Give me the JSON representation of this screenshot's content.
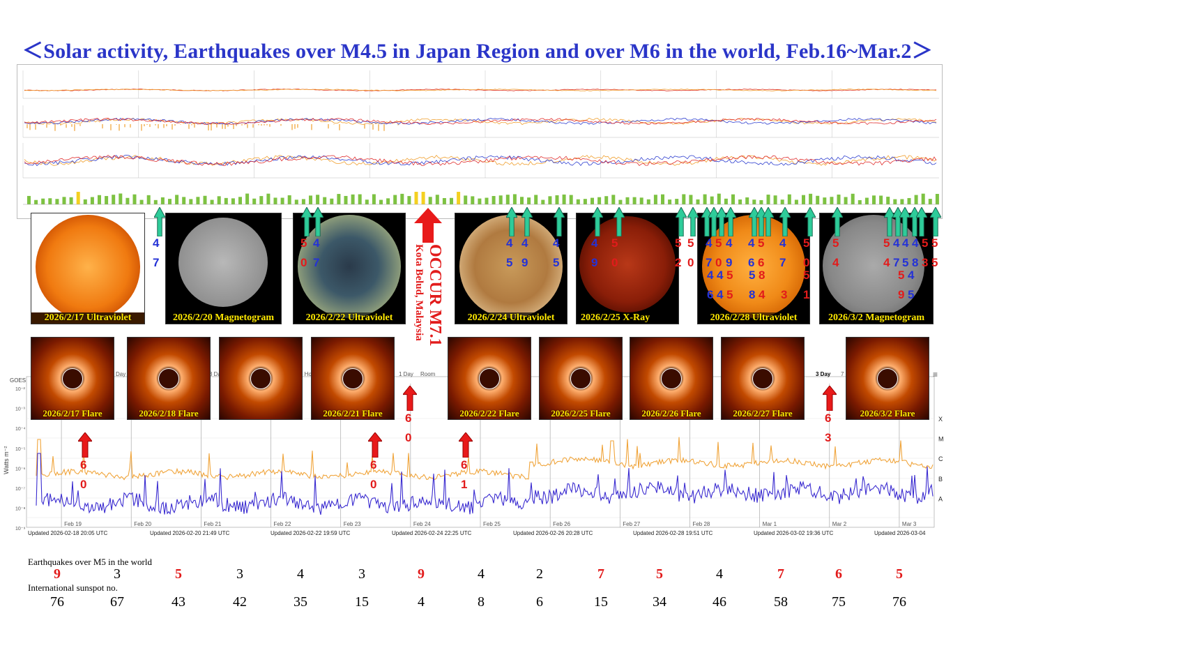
{
  "title": "＜Solar activity, Earthquakes over M4.5 in Japan Region and over M6 in the world, Feb.16~Mar.2＞",
  "colors": {
    "title": "#2a35c8",
    "blue_digit": "#2432d6",
    "red_digit": "#e21b1b",
    "xray_long": "#f0a43a",
    "xray_short": "#3a2bd0",
    "caption": "#ffe900"
  },
  "solar_images": [
    {
      "caption": "2026/2/17 Ultraviolet",
      "kind": "uv_orange"
    },
    {
      "caption": "2026/2/20 Magnetogram",
      "kind": "magnetogram"
    },
    {
      "caption": "2026/2/22 Ultraviolet",
      "kind": "uv_blue"
    },
    {
      "caption": "2026/2/24 Ultraviolet",
      "kind": "uv_tan"
    },
    {
      "caption": "2026/2/25 X-Ray",
      "kind": "xray_red"
    },
    {
      "caption": "2026/2/28 Ultraviolet",
      "kind": "uv_orange"
    },
    {
      "caption": "2026/3/2 Magnetogram",
      "kind": "magnetogram"
    }
  ],
  "flare_images": [
    {
      "caption": "2026/2/17 Flare"
    },
    {
      "caption": "2026/2/18 Flare"
    },
    {
      "caption": ""
    },
    {
      "caption": "2026/2/21 Flare"
    },
    {
      "caption": "2026/2/22 Flare"
    },
    {
      "caption": "2026/2/25 Flare"
    },
    {
      "caption": "2026/2/26 Flare"
    },
    {
      "caption": "2026/2/27 Flare"
    },
    {
      "caption": "2026/3/2 Flare"
    }
  ],
  "japan_quake_labels": [
    {
      "top": "4",
      "bottom": "7"
    },
    {
      "top": "5",
      "bottom": "0"
    },
    {
      "top": "4",
      "bottom": "7"
    },
    {
      "top": "4",
      "bottom": "5"
    },
    {
      "top": "4",
      "bottom": "9"
    },
    {
      "top": "4",
      "bottom": "5"
    },
    {
      "top": "4",
      "bottom": "9"
    },
    {
      "top": "5",
      "bottom": "0"
    },
    {
      "top": "5",
      "bottom": "2"
    },
    {
      "top": "5",
      "bottom": "0"
    },
    {
      "top": "4",
      "bottom": "7"
    },
    {
      "top": "5",
      "bottom": "0"
    },
    {
      "top": "4",
      "bottom": "9"
    },
    {
      "top": "4",
      "bottom": "6"
    },
    {
      "top": "5",
      "bottom": "6"
    },
    {
      "top": "4",
      "bottom": "7"
    },
    {
      "top": "5",
      "bottom": "0"
    },
    {
      "top": "5",
      "bottom": "4"
    },
    {
      "top": "5",
      "bottom": "4"
    },
    {
      "top": "4",
      "bottom": "7"
    },
    {
      "top": "4",
      "bottom": "5"
    },
    {
      "top": "4",
      "bottom": "8"
    },
    {
      "top": "5",
      "bottom": "3"
    },
    {
      "top": "5",
      "bottom": "5"
    }
  ],
  "japan_quake_extra": [
    "4",
    "4",
    "5",
    "5",
    "8",
    "6",
    "4",
    "5",
    "8",
    "4",
    "3",
    "5",
    "1",
    "5",
    "4",
    "9",
    "5"
  ],
  "world_quakes": [
    {
      "top": "6",
      "bottom": "0"
    },
    {
      "top": "6",
      "bottom": "0"
    },
    {
      "top": "6",
      "bottom": "0"
    },
    {
      "top": "6",
      "bottom": "1"
    },
    {
      "top": "6",
      "bottom": "3"
    }
  ],
  "major_event": {
    "text": "OCCUR M7.1",
    "place": "Kota Belud, Malaysia"
  },
  "xray_chart": {
    "left_label": "Watts m⁻²",
    "header_left": "GOES",
    "class_labels": [
      "X",
      "M",
      "C",
      "B",
      "A"
    ],
    "x_ticks": [
      "Feb 19",
      "Feb 20",
      "Feb 21",
      "Feb 22",
      "Feb 23",
      "Feb 24",
      "Feb 25",
      "Feb 26",
      "Feb 27",
      "Feb 28",
      "Mar 1",
      "Mar 2",
      "Mar 3"
    ],
    "tabs": [
      "Day",
      "3 Day",
      "6 Hour",
      "1 Day",
      "Room",
      "3 Day",
      "7 Day"
    ],
    "updated": [
      "Updated 2026-02-18 20:05 UTC",
      "Updated 2026-02-20 21:49 UTC",
      "Updated 2026-02-22 19:59 UTC",
      "Updated 2026-02-24 22:25 UTC",
      "Updated 2026-02-26 20:28 UTC",
      "Updated 2026-02-28 19:51 UTC",
      "Updated 2026-03-02 19:36 UTC",
      "Updated 2026-03-04"
    ]
  },
  "chart_data": {
    "type": "table",
    "title": "Solar activity, Earthquakes over M4.5 in Japan Region and over M6 in the world, Feb.16~Mar.2",
    "rows": [
      {
        "label": "Earthquakes over M5 in the world",
        "values": [
          9,
          3,
          5,
          3,
          4,
          3,
          9,
          4,
          2,
          7,
          5,
          4,
          7,
          6,
          5
        ],
        "highlight": [
          true,
          false,
          true,
          false,
          false,
          false,
          true,
          false,
          false,
          true,
          true,
          false,
          true,
          true,
          true
        ]
      },
      {
        "label": "International sunspot no.",
        "values": [
          76,
          67,
          43,
          42,
          35,
          15,
          4,
          8,
          6,
          15,
          34,
          46,
          58,
          75,
          76
        ]
      }
    ]
  }
}
